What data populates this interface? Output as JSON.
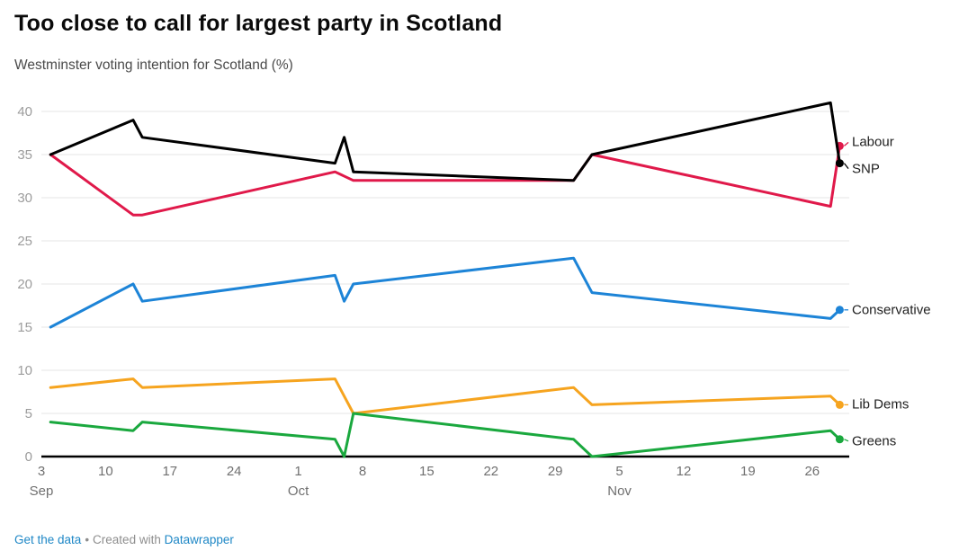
{
  "header": {
    "title": "Too close to call for largest party in Scotland",
    "subtitle": "Westminster voting intention for Scotland (%)"
  },
  "footer": {
    "get_data_label": "Get the data",
    "separator": "•",
    "credit_text": "Created with",
    "credit_link": "Datawrapper"
  },
  "chart_data": {
    "type": "line",
    "title": "Too close to call for largest party in Scotland",
    "subtitle": "Westminster voting intention for Scotland (%)",
    "xlabel": "",
    "ylabel": "",
    "ylim": [
      0,
      42
    ],
    "yticks": [
      0,
      5,
      10,
      15,
      20,
      25,
      30,
      35,
      40
    ],
    "grid": "horizontal",
    "x_axis_start": "Sep 3",
    "x_axis_end": "Nov 30",
    "legend_position": "line-end labels at right",
    "xticks": [
      {
        "day": 0,
        "label": "3",
        "month": "Sep"
      },
      {
        "day": 7,
        "label": "10"
      },
      {
        "day": 14,
        "label": "17"
      },
      {
        "day": 21,
        "label": "24"
      },
      {
        "day": 28,
        "label": "1",
        "month": "Oct"
      },
      {
        "day": 35,
        "label": "8"
      },
      {
        "day": 42,
        "label": "15"
      },
      {
        "day": 49,
        "label": "22"
      },
      {
        "day": 56,
        "label": "29"
      },
      {
        "day": 63,
        "label": "5",
        "month": "Nov"
      },
      {
        "day": 70,
        "label": "12"
      },
      {
        "day": 77,
        "label": "19"
      },
      {
        "day": 84,
        "label": "26"
      }
    ],
    "series": [
      {
        "name": "Conservative",
        "color": "#1d84d7",
        "label_dy": 0,
        "points": [
          {
            "date": "Sep 4",
            "day": 1,
            "value": 15
          },
          {
            "date": "Sep 13",
            "day": 10,
            "value": 20
          },
          {
            "date": "Sep 14",
            "day": 11,
            "value": 18
          },
          {
            "date": "Oct 5",
            "day": 32,
            "value": 21
          },
          {
            "date": "Oct 6",
            "day": 33,
            "value": 18
          },
          {
            "date": "Oct 7",
            "day": 34,
            "value": 20
          },
          {
            "date": "Oct 31",
            "day": 58,
            "value": 23
          },
          {
            "date": "Nov 2",
            "day": 60,
            "value": 19
          },
          {
            "date": "Nov 28",
            "day": 86,
            "value": 16
          },
          {
            "date": "Nov 29",
            "day": 87,
            "value": 17
          }
        ]
      },
      {
        "name": "Lib Dems",
        "color": "#f6a41f",
        "label_dy": 0,
        "points": [
          {
            "date": "Sep 4",
            "day": 1,
            "value": 8
          },
          {
            "date": "Sep 13",
            "day": 10,
            "value": 9
          },
          {
            "date": "Sep 14",
            "day": 11,
            "value": 8
          },
          {
            "date": "Oct 5",
            "day": 32,
            "value": 9
          },
          {
            "date": "Oct 7",
            "day": 34,
            "value": 5
          },
          {
            "date": "Oct 31",
            "day": 58,
            "value": 8
          },
          {
            "date": "Nov 2",
            "day": 60,
            "value": 6
          },
          {
            "date": "Nov 28",
            "day": 86,
            "value": 7
          },
          {
            "date": "Nov 29",
            "day": 87,
            "value": 6
          }
        ]
      },
      {
        "name": "Greens",
        "color": "#1aa83e",
        "label_dy": 2,
        "points": [
          {
            "date": "Sep 4",
            "day": 1,
            "value": 4
          },
          {
            "date": "Sep 13",
            "day": 10,
            "value": 3
          },
          {
            "date": "Sep 14",
            "day": 11,
            "value": 4
          },
          {
            "date": "Oct 5",
            "day": 32,
            "value": 2
          },
          {
            "date": "Oct 6",
            "day": 33,
            "value": 0
          },
          {
            "date": "Oct 7",
            "day": 34,
            "value": 5
          },
          {
            "date": "Oct 31",
            "day": 58,
            "value": 2
          },
          {
            "date": "Nov 2",
            "day": 60,
            "value": 0
          },
          {
            "date": "Nov 28",
            "day": 86,
            "value": 3
          },
          {
            "date": "Nov 29",
            "day": 87,
            "value": 2
          }
        ]
      },
      {
        "name": "Labour",
        "color": "#e0194a",
        "label_dy": -4,
        "points": [
          {
            "date": "Sep 4",
            "day": 1,
            "value": 35
          },
          {
            "date": "Sep 13",
            "day": 10,
            "value": 28
          },
          {
            "date": "Sep 14",
            "day": 11,
            "value": 28
          },
          {
            "date": "Oct 5",
            "day": 32,
            "value": 33
          },
          {
            "date": "Oct 7",
            "day": 34,
            "value": 32
          },
          {
            "date": "Oct 31",
            "day": 58,
            "value": 32
          },
          {
            "date": "Nov 2",
            "day": 60,
            "value": 35
          },
          {
            "date": "Nov 28",
            "day": 86,
            "value": 29
          },
          {
            "date": "Nov 29",
            "day": 87,
            "value": 36
          }
        ]
      },
      {
        "name": "SNP",
        "color": "#000000",
        "label_dy": 6,
        "points": [
          {
            "date": "Sep 4",
            "day": 1,
            "value": 35
          },
          {
            "date": "Sep 13",
            "day": 10,
            "value": 39
          },
          {
            "date": "Sep 14",
            "day": 11,
            "value": 37
          },
          {
            "date": "Oct 5",
            "day": 32,
            "value": 34
          },
          {
            "date": "Oct 6",
            "day": 33,
            "value": 37
          },
          {
            "date": "Oct 7",
            "day": 34,
            "value": 33
          },
          {
            "date": "Oct 31",
            "day": 58,
            "value": 32
          },
          {
            "date": "Nov 2",
            "day": 60,
            "value": 35
          },
          {
            "date": "Nov 28",
            "day": 86,
            "value": 41
          },
          {
            "date": "Nov 29",
            "day": 87,
            "value": 34
          }
        ]
      }
    ],
    "style": {
      "gridline_color": "#e4e4e4",
      "baseline_color": "#000000",
      "y_tick_color": "#9c9c9c",
      "x_tick_color": "#707070",
      "label_color": "#1f1f1f"
    }
  }
}
